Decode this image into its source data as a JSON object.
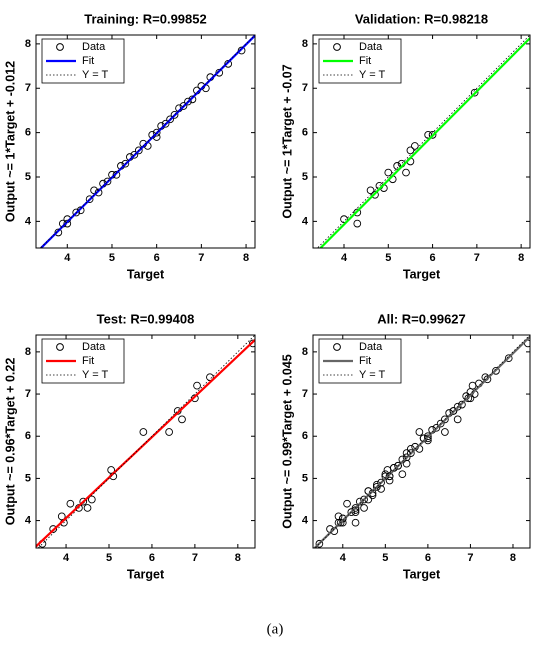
{
  "chart_data": [
    {
      "type": "scatter",
      "title": "Training: R=0.99852",
      "xlabel": "Target",
      "ylabel": "Output ~= 1*Target + -0.012",
      "xlim": [
        3.3,
        8.2
      ],
      "ylim": [
        3.4,
        8.2
      ],
      "xticks": [
        4,
        5,
        6,
        7,
        8
      ],
      "yticks": [
        4,
        5,
        6,
        7,
        8
      ],
      "legend": "upper left",
      "series": [
        {
          "name": "Data",
          "color": "#000000",
          "marker": "circle",
          "x": [
            3.8,
            3.9,
            4.0,
            4.0,
            4.2,
            4.3,
            4.5,
            4.6,
            4.7,
            4.8,
            4.9,
            5.0,
            5.1,
            5.2,
            5.3,
            5.4,
            5.5,
            5.6,
            5.7,
            5.8,
            5.9,
            6.0,
            6.0,
            6.1,
            6.2,
            6.3,
            6.4,
            6.5,
            6.6,
            6.7,
            6.8,
            6.9,
            7.0,
            7.1,
            7.2,
            7.4,
            7.6,
            7.9
          ],
          "values": [
            3.75,
            3.95,
            4.05,
            3.95,
            4.2,
            4.25,
            4.5,
            4.7,
            4.65,
            4.85,
            4.9,
            5.05,
            5.05,
            5.25,
            5.3,
            5.45,
            5.5,
            5.6,
            5.75,
            5.7,
            5.95,
            6.0,
            5.9,
            6.15,
            6.2,
            6.3,
            6.4,
            6.55,
            6.6,
            6.7,
            6.75,
            6.95,
            7.05,
            7.0,
            7.25,
            7.35,
            7.55,
            7.85
          ]
        },
        {
          "name": "Fit",
          "color": "#0000ff",
          "line": "solid",
          "x": [
            3.3,
            8.2
          ],
          "values": [
            3.288,
            8.188
          ]
        },
        {
          "name": "Y = T",
          "color": "#000000",
          "line": "dotted",
          "x": [
            3.3,
            8.2
          ],
          "values": [
            3.3,
            8.2
          ]
        }
      ]
    },
    {
      "type": "scatter",
      "title": "Validation: R=0.98218",
      "xlabel": "Target",
      "ylabel": "Output ~= 1*Target + -0.07",
      "xlim": [
        3.3,
        8.2
      ],
      "ylim": [
        3.4,
        8.2
      ],
      "xticks": [
        4,
        5,
        6,
        7,
        8
      ],
      "yticks": [
        4,
        5,
        6,
        7,
        8
      ],
      "legend": "upper left",
      "series": [
        {
          "name": "Data",
          "color": "#000000",
          "marker": "circle",
          "x": [
            4.0,
            4.3,
            4.3,
            4.6,
            4.7,
            4.8,
            4.9,
            5.0,
            5.1,
            5.2,
            5.3,
            5.4,
            5.5,
            5.5,
            5.6,
            5.9,
            6.0,
            6.95
          ],
          "values": [
            4.05,
            3.95,
            4.2,
            4.7,
            4.6,
            4.8,
            4.75,
            5.1,
            4.95,
            5.25,
            5.3,
            5.1,
            5.35,
            5.6,
            5.7,
            5.95,
            5.95,
            6.9
          ]
        },
        {
          "name": "Fit",
          "color": "#00ff00",
          "line": "solid",
          "x": [
            3.3,
            8.2
          ],
          "values": [
            3.23,
            8.13
          ]
        },
        {
          "name": "Y = T",
          "color": "#000000",
          "line": "dotted",
          "x": [
            3.3,
            8.2
          ],
          "values": [
            3.3,
            8.2
          ]
        }
      ]
    },
    {
      "type": "scatter",
      "title": "Test: R=0.99408",
      "xlabel": "Target",
      "ylabel": "Output ~= 0.96*Target + 0.22",
      "xlim": [
        3.3,
        8.4
      ],
      "ylim": [
        3.35,
        8.4
      ],
      "xticks": [
        4,
        5,
        6,
        7,
        8
      ],
      "yticks": [
        4,
        5,
        6,
        7,
        8
      ],
      "legend": "upper left",
      "series": [
        {
          "name": "Data",
          "color": "#000000",
          "marker": "circle",
          "x": [
            3.45,
            3.7,
            3.9,
            3.95,
            4.1,
            4.3,
            4.4,
            4.5,
            4.6,
            5.05,
            5.1,
            5.8,
            6.4,
            6.6,
            6.7,
            7.0,
            7.05,
            7.35,
            8.35
          ],
          "values": [
            3.45,
            3.8,
            4.1,
            3.95,
            4.4,
            4.3,
            4.45,
            4.3,
            4.5,
            5.2,
            5.05,
            6.1,
            6.1,
            6.6,
            6.4,
            6.9,
            7.2,
            7.4,
            8.2
          ]
        },
        {
          "name": "Fit",
          "color": "#ff0000",
          "line": "solid",
          "x": [
            3.3,
            8.4
          ],
          "values": [
            3.388,
            8.284
          ]
        },
        {
          "name": "Y = T",
          "color": "#000000",
          "line": "dotted",
          "x": [
            3.3,
            8.4
          ],
          "values": [
            3.3,
            8.4
          ]
        }
      ]
    },
    {
      "type": "scatter",
      "title": "All: R=0.99627",
      "xlabel": "Target",
      "ylabel": "Output ~= 0.99*Target + 0.045",
      "xlim": [
        3.3,
        8.4
      ],
      "ylim": [
        3.35,
        8.4
      ],
      "xticks": [
        4,
        5,
        6,
        7,
        8
      ],
      "yticks": [
        4,
        5,
        6,
        7,
        8
      ],
      "legend": "upper left",
      "series": [
        {
          "name": "Data",
          "color": "#000000",
          "marker": "circle",
          "x": [
            3.8,
            3.9,
            4.0,
            4.0,
            4.2,
            4.3,
            4.5,
            4.6,
            4.7,
            4.8,
            4.9,
            5.0,
            5.1,
            5.2,
            5.3,
            5.4,
            5.5,
            5.6,
            5.7,
            5.8,
            5.9,
            6.0,
            6.0,
            6.1,
            6.2,
            6.3,
            6.4,
            6.5,
            6.6,
            6.7,
            6.8,
            6.9,
            7.0,
            7.1,
            7.2,
            7.4,
            7.6,
            7.9,
            4.0,
            4.3,
            4.3,
            4.6,
            4.7,
            4.8,
            4.9,
            5.0,
            5.1,
            5.2,
            5.3,
            5.4,
            5.5,
            5.5,
            5.6,
            5.9,
            6.0,
            6.95,
            3.45,
            3.7,
            3.9,
            3.95,
            4.1,
            4.3,
            4.4,
            4.5,
            4.6,
            5.05,
            5.1,
            5.8,
            6.4,
            6.6,
            6.7,
            7.0,
            7.05,
            7.35,
            8.35
          ],
          "values": [
            3.75,
            3.95,
            4.05,
            3.95,
            4.2,
            4.25,
            4.5,
            4.7,
            4.65,
            4.85,
            4.9,
            5.05,
            5.05,
            5.25,
            5.3,
            5.45,
            5.5,
            5.6,
            5.75,
            5.7,
            5.95,
            6.0,
            5.9,
            6.15,
            6.2,
            6.3,
            6.4,
            6.55,
            6.6,
            6.7,
            6.75,
            6.95,
            7.05,
            7.0,
            7.25,
            7.35,
            7.55,
            7.85,
            4.05,
            3.95,
            4.2,
            4.7,
            4.6,
            4.8,
            4.75,
            5.1,
            4.95,
            5.25,
            5.3,
            5.1,
            5.35,
            5.6,
            5.7,
            5.95,
            5.95,
            6.9,
            3.45,
            3.8,
            4.1,
            3.95,
            4.4,
            4.3,
            4.45,
            4.3,
            4.5,
            5.2,
            5.05,
            6.1,
            6.1,
            6.6,
            6.4,
            6.9,
            7.2,
            7.4,
            8.2
          ]
        },
        {
          "name": "Fit",
          "color": "#666666",
          "line": "solid",
          "x": [
            3.3,
            8.4
          ],
          "values": [
            3.312,
            8.361
          ]
        },
        {
          "name": "Y = T",
          "color": "#000000",
          "line": "dotted",
          "x": [
            3.3,
            8.4
          ],
          "values": [
            3.3,
            8.4
          ]
        }
      ]
    }
  ],
  "caption": "(a)"
}
